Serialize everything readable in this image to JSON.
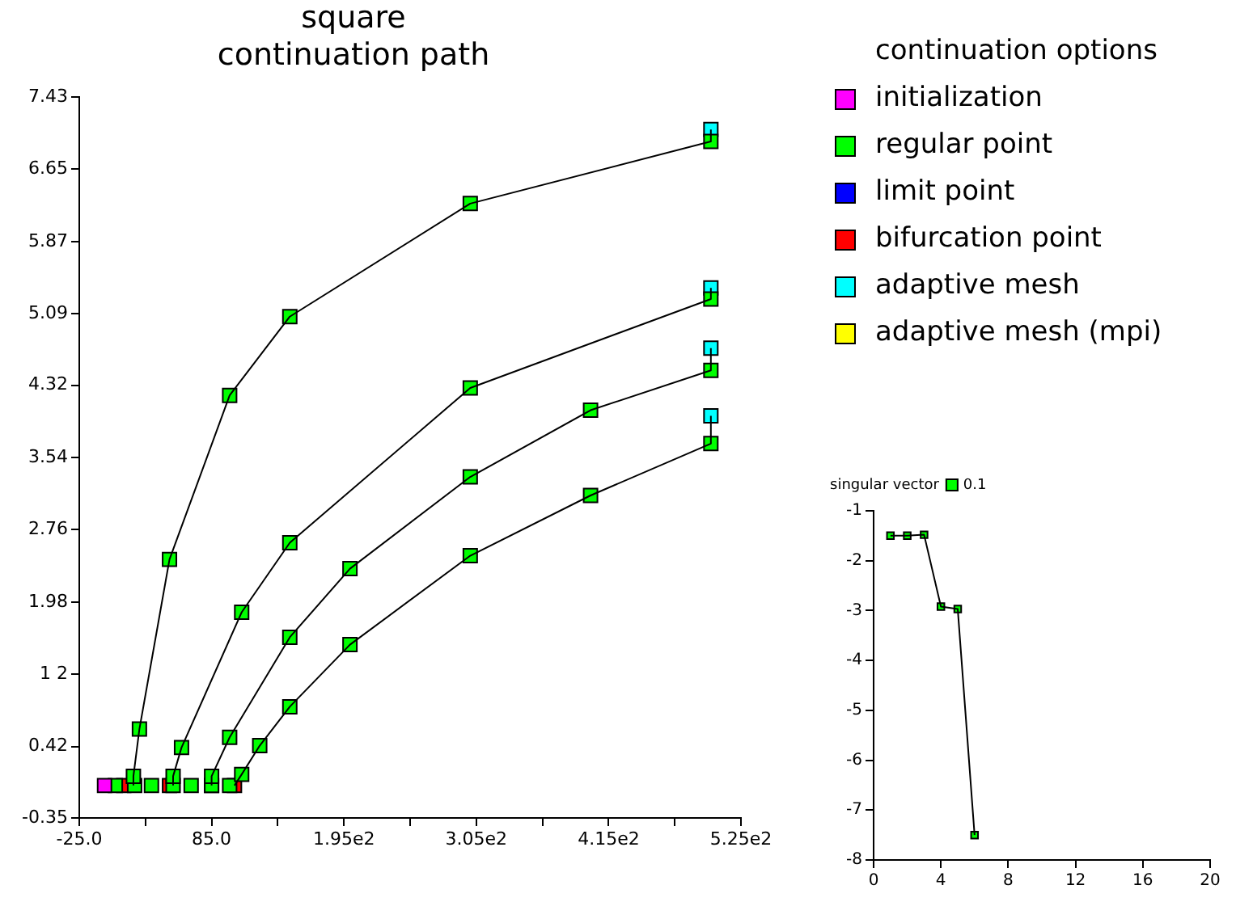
{
  "chart_data": [
    {
      "type": "scatter",
      "title": "square",
      "subtitle": "continuation path",
      "legend_title": "continuation options",
      "legend": "right",
      "marker": "square",
      "xlim": [
        -25,
        525
      ],
      "xticks": [
        {
          "value": -25,
          "label": "-25.0"
        },
        {
          "value": 30,
          "label": null
        },
        {
          "value": 85,
          "label": "85.0"
        },
        {
          "value": 140,
          "label": null
        },
        {
          "value": 195,
          "label": "1.95e2"
        },
        {
          "value": 250,
          "label": null
        },
        {
          "value": 305,
          "label": "3.05e2"
        },
        {
          "value": 360,
          "label": null
        },
        {
          "value": 415,
          "label": "4.15e2"
        },
        {
          "value": 470,
          "label": null
        },
        {
          "value": 525,
          "label": "5.25e2"
        }
      ],
      "ylim": [
        -0.35,
        7.43
      ],
      "yticks": [
        -0.35,
        0.42,
        {
          "value": 1.2,
          "label": "1 2"
        },
        1.98,
        2.76,
        3.54,
        4.32,
        5.09,
        5.87,
        6.65,
        7.43
      ],
      "series": [
        {
          "type": "line",
          "marker": "none",
          "color": "#000000",
          "x": [
            20,
            20,
            25,
            50,
            100,
            150,
            300,
            500,
            500
          ],
          "values": [
            0,
            0.1,
            0.61,
            2.44,
            4.21,
            5.06,
            6.28,
            6.95,
            7.08
          ]
        },
        {
          "type": "line",
          "marker": "none",
          "color": "#000000",
          "x": [
            53,
            53,
            60,
            110,
            150,
            300,
            500,
            500
          ],
          "values": [
            0,
            0.1,
            0.41,
            1.87,
            2.62,
            4.29,
            5.25,
            5.37
          ]
        },
        {
          "type": "line",
          "marker": "none",
          "color": "#000000",
          "x": [
            85,
            85,
            100,
            150,
            200,
            300,
            400,
            500,
            500
          ],
          "values": [
            0,
            0.1,
            0.52,
            1.6,
            2.34,
            3.33,
            4.05,
            4.48,
            4.72
          ]
        },
        {
          "type": "line",
          "marker": "none",
          "color": "#000000",
          "x": [
            104,
            110,
            125,
            150,
            200,
            300,
            400,
            500,
            500
          ],
          "values": [
            0,
            0.12,
            0.43,
            0.85,
            1.52,
            2.48,
            3.13,
            3.69,
            3.99
          ]
        },
        {
          "name": "initialization",
          "color": "#ff00ff",
          "x": [
            -4
          ],
          "values": [
            0
          ]
        },
        {
          "name": "regular point",
          "color": "#00ff00",
          "x": [
            5,
            21,
            35,
            53,
            68,
            85,
            100,
            20,
            53,
            85,
            110,
            25,
            50,
            100,
            150,
            300,
            500,
            60,
            110,
            150,
            300,
            500,
            100,
            150,
            200,
            300,
            400,
            500,
            125,
            150,
            200,
            300,
            400,
            500
          ],
          "values": [
            0,
            0,
            0,
            0,
            0,
            0,
            0,
            0.1,
            0.1,
            0.1,
            0.12,
            0.61,
            2.44,
            4.21,
            5.06,
            6.28,
            6.95,
            0.41,
            1.87,
            2.62,
            4.29,
            5.25,
            0.52,
            1.6,
            2.34,
            3.33,
            4.05,
            4.48,
            0.43,
            0.85,
            1.52,
            2.48,
            3.13,
            3.69
          ]
        },
        {
          "name": "limit point",
          "color": "#0000ff"
        },
        {
          "name": "bifurcation point",
          "color": "#ff0000",
          "x": [
            12,
            50,
            85,
            104
          ],
          "values": [
            0,
            0,
            0,
            0
          ]
        },
        {
          "name": "adaptive mesh",
          "color": "#00ffff",
          "x": [
            500,
            500,
            500,
            500
          ],
          "values": [
            7.08,
            5.37,
            4.72,
            3.99
          ]
        },
        {
          "name": "adaptive mesh (mpi)",
          "color": "#ffff00"
        }
      ]
    },
    {
      "type": "scatter",
      "title": "singular vector",
      "legend": "top left",
      "marker": "square",
      "xlim": [
        0,
        20
      ],
      "xticks": [
        0,
        4,
        8,
        12,
        16,
        20
      ],
      "ylim": [
        -8,
        -1
      ],
      "yticks": [
        -8,
        -7,
        -6,
        -5,
        -4,
        -3,
        -2,
        -1
      ],
      "series": [
        {
          "type": "line",
          "marker": "none",
          "color": "#000000",
          "x": [
            1,
            2,
            3,
            4,
            5,
            6
          ],
          "values": [
            -1.5,
            -1.5,
            -1.48,
            -2.92,
            -2.97,
            -7.5
          ]
        },
        {
          "name": "0.1",
          "color": "#00ff00",
          "x": [
            1,
            2,
            3,
            4,
            5,
            6
          ],
          "values": [
            -1.5,
            -1.5,
            -1.48,
            -2.92,
            -2.97,
            -7.5
          ]
        }
      ]
    }
  ]
}
